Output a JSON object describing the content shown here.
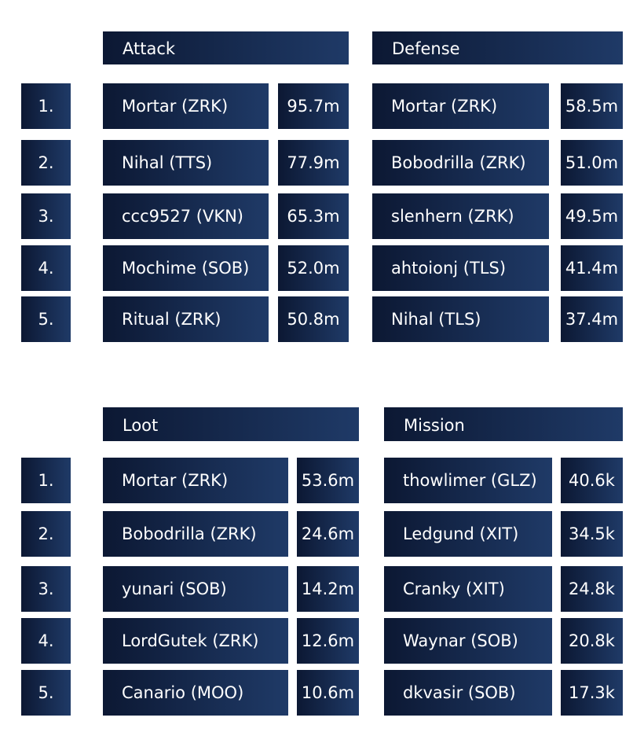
{
  "sections": [
    {
      "columns": [
        {
          "title": "Attack",
          "rows": [
            {
              "name": "Mortar (ZRK)",
              "value": "95.7m"
            },
            {
              "name": "Nihal (TTS)",
              "value": "77.9m"
            },
            {
              "name": "ccc9527 (VKN)",
              "value": "65.3m"
            },
            {
              "name": "Mochime (SOB)",
              "value": "52.0m"
            },
            {
              "name": "Ritual (ZRK)",
              "value": "50.8m"
            }
          ]
        },
        {
          "title": "Defense",
          "rows": [
            {
              "name": "Mortar (ZRK)",
              "value": "58.5m"
            },
            {
              "name": "Bobodrilla (ZRK)",
              "value": "51.0m"
            },
            {
              "name": "slenhern (ZRK)",
              "value": "49.5m"
            },
            {
              "name": "ahtoionj (TLS)",
              "value": "41.4m"
            },
            {
              "name": "Nihal (TLS)",
              "value": "37.4m"
            }
          ]
        }
      ]
    },
    {
      "columns": [
        {
          "title": "Loot",
          "rows": [
            {
              "name": "Mortar (ZRK)",
              "value": "53.6m"
            },
            {
              "name": "Bobodrilla (ZRK)",
              "value": "24.6m"
            },
            {
              "name": "yunari (SOB)",
              "value": "14.2m"
            },
            {
              "name": "LordGutek (ZRK)",
              "value": "12.6m"
            },
            {
              "name": "Canario (MOO)",
              "value": "10.6m"
            }
          ]
        },
        {
          "title": "Mission",
          "rows": [
            {
              "name": "thowlimer (GLZ)",
              "value": "40.6k"
            },
            {
              "name": "Ledgund (XIT)",
              "value": "34.5k"
            },
            {
              "name": "Cranky (XIT)",
              "value": "24.8k"
            },
            {
              "name": "Waynar (SOB)",
              "value": "20.8k"
            },
            {
              "name": "dkvasir (SOB)",
              "value": "17.3k"
            }
          ]
        }
      ]
    }
  ],
  "ranks": [
    "1.",
    "2.",
    "3.",
    "4.",
    "5."
  ]
}
